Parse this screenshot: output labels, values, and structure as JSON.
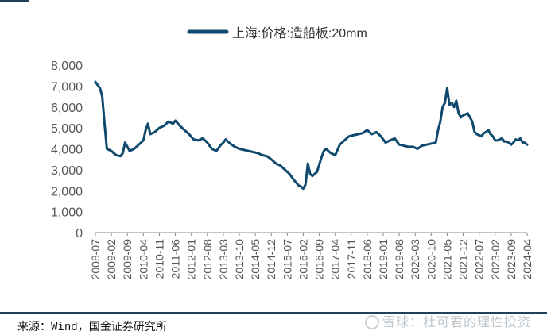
{
  "chart_data": {
    "type": "line",
    "title": "",
    "xlabel": "",
    "ylabel": "",
    "ylim": [
      0,
      8000
    ],
    "yticks": [
      "8,000",
      "7,000",
      "6,000",
      "5,000",
      "4,000",
      "3,000",
      "2,000",
      "1,000",
      "0"
    ],
    "ytick_values": [
      8000,
      7000,
      6000,
      5000,
      4000,
      3000,
      2000,
      1000,
      0
    ],
    "xticks": [
      "2008-07",
      "2009-02",
      "2009-09",
      "2010-04",
      "2010-11",
      "2011-06",
      "2012-01",
      "2012-08",
      "2013-03",
      "2013-10",
      "2014-05",
      "2014-12",
      "2015-07",
      "2016-02",
      "2016-09",
      "2017-04",
      "2017-11",
      "2018-06",
      "2019-01",
      "2019-08",
      "2020-03",
      "2020-10",
      "2021-05",
      "2021-12",
      "2022-07",
      "2023-02",
      "2023-09",
      "2024-04"
    ],
    "grid": false,
    "legend_position": "top",
    "series": [
      {
        "name": "上海:价格:造船板:20mm",
        "color": "#0f4a6e",
        "x": [
          "2008-07",
          "2008-09",
          "2008-10",
          "2008-11",
          "2008-12",
          "2009-02",
          "2009-04",
          "2009-06",
          "2009-07",
          "2009-08",
          "2009-10",
          "2009-12",
          "2010-02",
          "2010-04",
          "2010-05",
          "2010-06",
          "2010-07",
          "2010-09",
          "2010-11",
          "2011-01",
          "2011-03",
          "2011-05",
          "2011-06",
          "2011-08",
          "2011-10",
          "2011-12",
          "2012-02",
          "2012-04",
          "2012-06",
          "2012-08",
          "2012-10",
          "2012-12",
          "2013-02",
          "2013-03",
          "2013-04",
          "2013-06",
          "2013-08",
          "2013-10",
          "2013-12",
          "2014-02",
          "2014-04",
          "2014-06",
          "2014-08",
          "2014-10",
          "2014-12",
          "2015-02",
          "2015-04",
          "2015-06",
          "2015-08",
          "2015-10",
          "2015-12",
          "2016-01",
          "2016-02",
          "2016-03",
          "2016-04",
          "2016-05",
          "2016-06",
          "2016-08",
          "2016-10",
          "2016-11",
          "2016-12",
          "2017-02",
          "2017-04",
          "2017-06",
          "2017-08",
          "2017-10",
          "2017-12",
          "2018-02",
          "2018-04",
          "2018-06",
          "2018-08",
          "2018-10",
          "2018-12",
          "2019-02",
          "2019-04",
          "2019-06",
          "2019-08",
          "2019-10",
          "2019-12",
          "2020-02",
          "2020-04",
          "2020-06",
          "2020-08",
          "2020-10",
          "2020-12",
          "2021-01",
          "2021-02",
          "2021-03",
          "2021-04",
          "2021-05",
          "2021-06",
          "2021-07",
          "2021-08",
          "2021-09",
          "2021-10",
          "2021-11",
          "2021-12",
          "2022-01",
          "2022-02",
          "2022-03",
          "2022-04",
          "2022-05",
          "2022-06",
          "2022-07",
          "2022-08",
          "2022-09",
          "2022-10",
          "2022-11",
          "2022-12",
          "2023-01",
          "2023-02",
          "2023-03",
          "2023-04",
          "2023-05",
          "2023-06",
          "2023-07",
          "2023-08",
          "2023-09",
          "2023-10",
          "2023-11",
          "2023-12",
          "2024-01",
          "2024-02",
          "2024-03",
          "2024-04"
        ],
        "values": [
          7200,
          6900,
          6500,
          5200,
          4000,
          3900,
          3700,
          3650,
          3800,
          4300,
          3900,
          4000,
          4200,
          4400,
          4900,
          5200,
          4700,
          4800,
          5000,
          5100,
          5300,
          5200,
          5350,
          5100,
          4900,
          4700,
          4450,
          4400,
          4500,
          4300,
          4000,
          3900,
          4200,
          4300,
          4450,
          4250,
          4100,
          4000,
          3950,
          3900,
          3850,
          3800,
          3700,
          3650,
          3500,
          3300,
          3200,
          3000,
          2800,
          2500,
          2250,
          2200,
          2100,
          2300,
          3300,
          2800,
          2700,
          2900,
          3600,
          3900,
          4000,
          3800,
          3700,
          4200,
          4400,
          4600,
          4650,
          4700,
          4750,
          4900,
          4700,
          4800,
          4600,
          4300,
          4400,
          4500,
          4200,
          4150,
          4100,
          4100,
          4000,
          4150,
          4200,
          4250,
          4300,
          4900,
          5300,
          6000,
          6200,
          6900,
          6100,
          6200,
          6000,
          6300,
          5700,
          5500,
          5600,
          5650,
          5700,
          5500,
          5300,
          4800,
          4700,
          4650,
          4600,
          4750,
          4800,
          4900,
          4700,
          4600,
          4400,
          4400,
          4450,
          4500,
          4350,
          4350,
          4300,
          4200,
          4300,
          4450,
          4400,
          4500,
          4300,
          4300,
          4200
        ]
      }
    ]
  },
  "source_text": "来源：Wind，国金证券研究所",
  "watermark_text": "雪球：杜可君的理性投资"
}
